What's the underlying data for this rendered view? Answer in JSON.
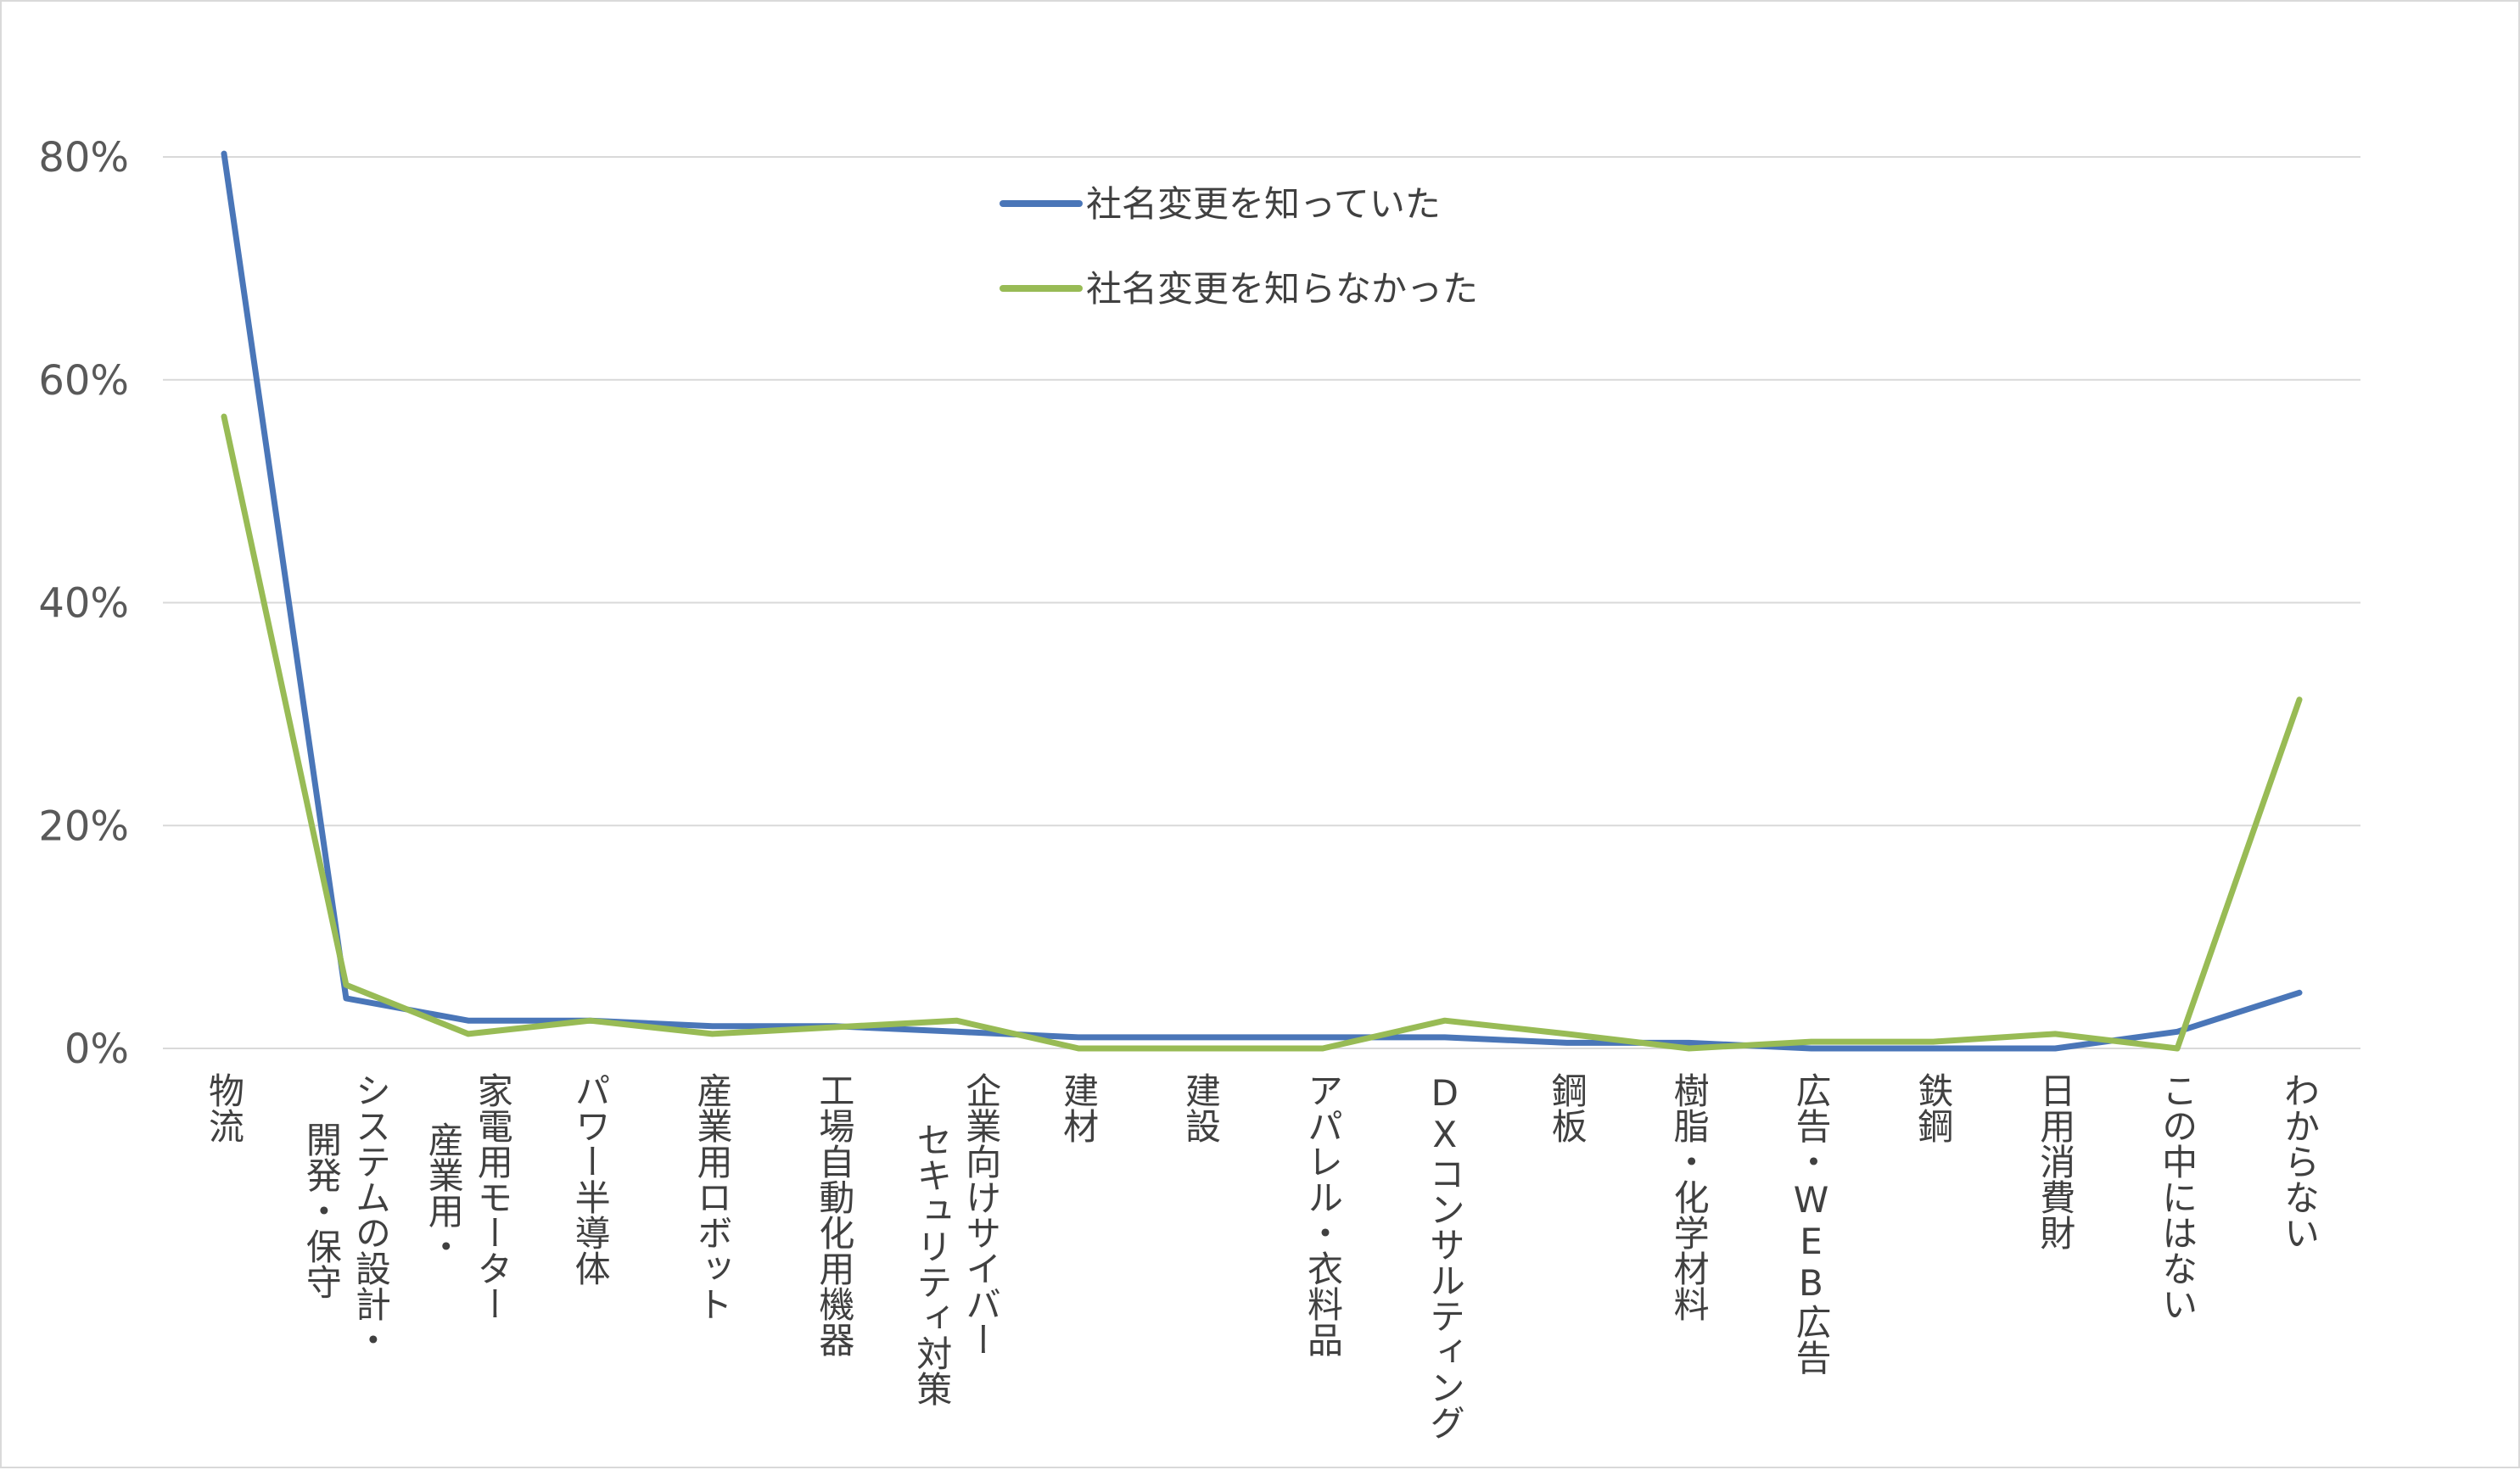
{
  "chart_data": {
    "type": "line",
    "categories": [
      [
        "物流"
      ],
      [
        "システムの設計・",
        "開発・保守"
      ],
      [
        "家電用モーター",
        "産業用・"
      ],
      [
        "パワー半導体"
      ],
      [
        "産業用ロボット"
      ],
      [
        "工場自動化用機器"
      ],
      [
        "企業向けサイバー",
        "セキュリティ対策"
      ],
      [
        "建材"
      ],
      [
        "建設"
      ],
      [
        "アパレル・衣料品"
      ],
      [
        "DXコンサルティング"
      ],
      [
        "鋼板"
      ],
      [
        "樹脂・化学材料"
      ],
      [
        "広告・WEB広告"
      ],
      [
        "鉄鋼"
      ],
      [
        "日用消費財"
      ],
      [
        "この中にはない"
      ],
      [
        "わからない"
      ]
    ],
    "series": [
      {
        "name": "社名変更を知っていた",
        "color": "#4a76b8",
        "values": [
          80.3,
          4.5,
          2.5,
          2.5,
          2.0,
          2.0,
          1.5,
          1.0,
          1.0,
          1.0,
          1.0,
          0.5,
          0.5,
          0.0,
          0.0,
          0.0,
          1.5,
          5.0
        ]
      },
      {
        "name": "社名変更を知らなかった",
        "color": "#98bb55",
        "values": [
          56.7,
          5.7,
          1.3,
          2.5,
          1.3,
          1.9,
          2.5,
          0.0,
          0.0,
          0.0,
          2.5,
          1.3,
          0.0,
          0.6,
          0.6,
          1.3,
          0.0,
          31.3
        ]
      }
    ],
    "yticks": [
      "0%",
      "20%",
      "40%",
      "60%",
      "80%"
    ],
    "ylim": [
      0,
      80
    ],
    "y_unit": "%",
    "grid": true,
    "legend_position": "top-center",
    "xlabel": "",
    "ylabel": "",
    "title": ""
  }
}
